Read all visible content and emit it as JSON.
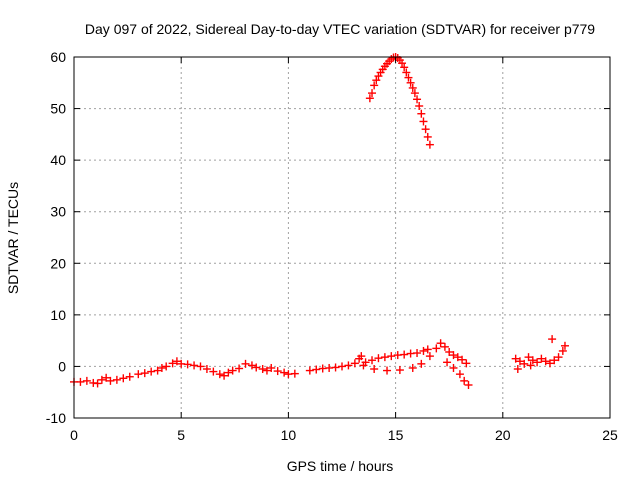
{
  "chart_data": {
    "type": "scatter",
    "title": "Day 097 of 2022, Sidereal Day-to-day VTEC variation (SDTVAR) for receiver p779",
    "xlabel": "GPS time / hours",
    "ylabel": "SDTVAR / TECUs",
    "xlim": [
      0,
      25
    ],
    "ylim": [
      -10,
      60
    ],
    "xticks": [
      0,
      5,
      10,
      15,
      20,
      25
    ],
    "yticks": [
      -10,
      0,
      10,
      20,
      30,
      40,
      50,
      60
    ],
    "grid": true,
    "marker": "+",
    "colors": {
      "series": "#ff0000",
      "grid": "#a0a0a0",
      "axis": "#000000"
    },
    "series": [
      {
        "points": [
          [
            0.0,
            -3.0
          ],
          [
            0.3,
            -3.0
          ],
          [
            0.6,
            -2.8
          ],
          [
            0.9,
            -3.2
          ],
          [
            1.1,
            -3.3
          ],
          [
            1.3,
            -2.6
          ],
          [
            1.5,
            -2.2
          ],
          [
            1.7,
            -2.8
          ],
          [
            2.0,
            -2.6
          ],
          [
            2.3,
            -2.3
          ],
          [
            2.6,
            -2.0
          ],
          [
            3.0,
            -1.5
          ],
          [
            3.3,
            -1.3
          ],
          [
            3.6,
            -1.0
          ],
          [
            3.9,
            -0.8
          ],
          [
            4.1,
            -0.3
          ],
          [
            4.3,
            0.0
          ],
          [
            4.6,
            0.6
          ],
          [
            4.8,
            1.0
          ],
          [
            5.0,
            0.5
          ],
          [
            5.3,
            0.4
          ],
          [
            5.6,
            0.2
          ],
          [
            5.9,
            0.0
          ],
          [
            6.2,
            -0.5
          ],
          [
            6.5,
            -1.0
          ],
          [
            6.8,
            -1.5
          ],
          [
            7.0,
            -1.8
          ],
          [
            7.2,
            -1.2
          ],
          [
            7.4,
            -0.8
          ],
          [
            7.7,
            -0.4
          ],
          [
            8.0,
            0.5
          ],
          [
            8.3,
            0.2
          ],
          [
            8.5,
            -0.2
          ],
          [
            8.8,
            -0.5
          ],
          [
            9.0,
            -0.8
          ],
          [
            9.2,
            -0.3
          ],
          [
            9.5,
            -0.9
          ],
          [
            9.8,
            -1.2
          ],
          [
            10.0,
            -1.5
          ],
          [
            10.3,
            -1.4
          ],
          [
            11.0,
            -0.8
          ],
          [
            11.3,
            -0.6
          ],
          [
            11.6,
            -0.4
          ],
          [
            11.9,
            -0.3
          ],
          [
            12.2,
            -0.2
          ],
          [
            12.5,
            0.0
          ],
          [
            12.8,
            0.2
          ],
          [
            13.1,
            0.6
          ],
          [
            13.3,
            1.5
          ],
          [
            13.4,
            2.0
          ],
          [
            13.6,
            0.8
          ],
          [
            13.9,
            1.2
          ],
          [
            14.2,
            1.6
          ],
          [
            14.5,
            1.8
          ],
          [
            14.8,
            2.0
          ],
          [
            15.1,
            2.2
          ],
          [
            15.4,
            2.3
          ],
          [
            15.7,
            2.5
          ],
          [
            16.0,
            2.6
          ],
          [
            16.3,
            3.0
          ],
          [
            16.5,
            3.3
          ],
          [
            13.5,
            0.2
          ],
          [
            14.0,
            -0.5
          ],
          [
            14.6,
            -0.8
          ],
          [
            15.2,
            -0.7
          ],
          [
            15.8,
            -0.3
          ],
          [
            16.2,
            0.5
          ],
          [
            16.6,
            2.0
          ],
          [
            16.9,
            3.5
          ],
          [
            17.1,
            4.5
          ],
          [
            17.3,
            3.8
          ],
          [
            17.5,
            2.8
          ],
          [
            17.7,
            2.2
          ],
          [
            17.9,
            1.8
          ],
          [
            18.1,
            1.3
          ],
          [
            18.3,
            0.6
          ],
          [
            17.4,
            0.8
          ],
          [
            17.7,
            -0.3
          ],
          [
            18.0,
            -1.5
          ],
          [
            18.2,
            -2.8
          ],
          [
            18.4,
            -3.6
          ],
          [
            13.8,
            52.0
          ],
          [
            13.9,
            53.0
          ],
          [
            14.0,
            54.5
          ],
          [
            14.1,
            55.5
          ],
          [
            14.2,
            56.3
          ],
          [
            14.3,
            57.0
          ],
          [
            14.4,
            57.6
          ],
          [
            14.5,
            58.2
          ],
          [
            14.6,
            58.7
          ],
          [
            14.7,
            59.2
          ],
          [
            14.8,
            59.6
          ],
          [
            14.9,
            59.9
          ],
          [
            15.0,
            60.0
          ],
          [
            15.1,
            59.8
          ],
          [
            15.2,
            59.4
          ],
          [
            15.3,
            58.8
          ],
          [
            15.4,
            58.0
          ],
          [
            15.5,
            57.0
          ],
          [
            15.6,
            56.0
          ],
          [
            15.7,
            55.0
          ],
          [
            15.8,
            54.0
          ],
          [
            15.9,
            53.0
          ],
          [
            16.0,
            51.8
          ],
          [
            16.1,
            50.5
          ],
          [
            16.2,
            49.0
          ],
          [
            16.3,
            47.5
          ],
          [
            16.4,
            46.0
          ],
          [
            16.5,
            44.5
          ],
          [
            16.6,
            43.0
          ],
          [
            20.6,
            1.5
          ],
          [
            20.8,
            1.0
          ],
          [
            21.0,
            0.5
          ],
          [
            21.2,
            1.8
          ],
          [
            21.4,
            1.2
          ],
          [
            21.6,
            0.8
          ],
          [
            21.8,
            1.5
          ],
          [
            22.0,
            1.0
          ],
          [
            22.2,
            0.6
          ],
          [
            22.4,
            1.2
          ],
          [
            22.6,
            1.8
          ],
          [
            22.8,
            3.0
          ],
          [
            22.9,
            4.0
          ],
          [
            20.7,
            -0.5
          ],
          [
            21.3,
            0.2
          ],
          [
            22.3,
            5.3
          ]
        ]
      }
    ]
  }
}
